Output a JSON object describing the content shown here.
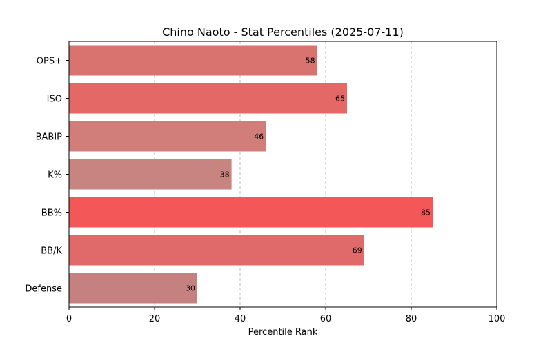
{
  "chart_data": {
    "type": "bar",
    "orientation": "horizontal",
    "title": "Chino Naoto - Stat Percentiles (2025-07-11)",
    "xlabel": "Percentile Rank",
    "ylabel": "",
    "xlim": [
      0,
      100
    ],
    "xticks": [
      0,
      20,
      40,
      60,
      80,
      100
    ],
    "grid": "x-dashed",
    "categories": [
      "OPS+",
      "ISO",
      "BABIP",
      "K%",
      "BB%",
      "BB/K",
      "Defense"
    ],
    "values": [
      58,
      65,
      46,
      38,
      85,
      69,
      30
    ],
    "colors": [
      "#d97370",
      "#e36866",
      "#d17d79",
      "#c78480",
      "#f45757",
      "#df6a69",
      "#c5817f"
    ]
  }
}
